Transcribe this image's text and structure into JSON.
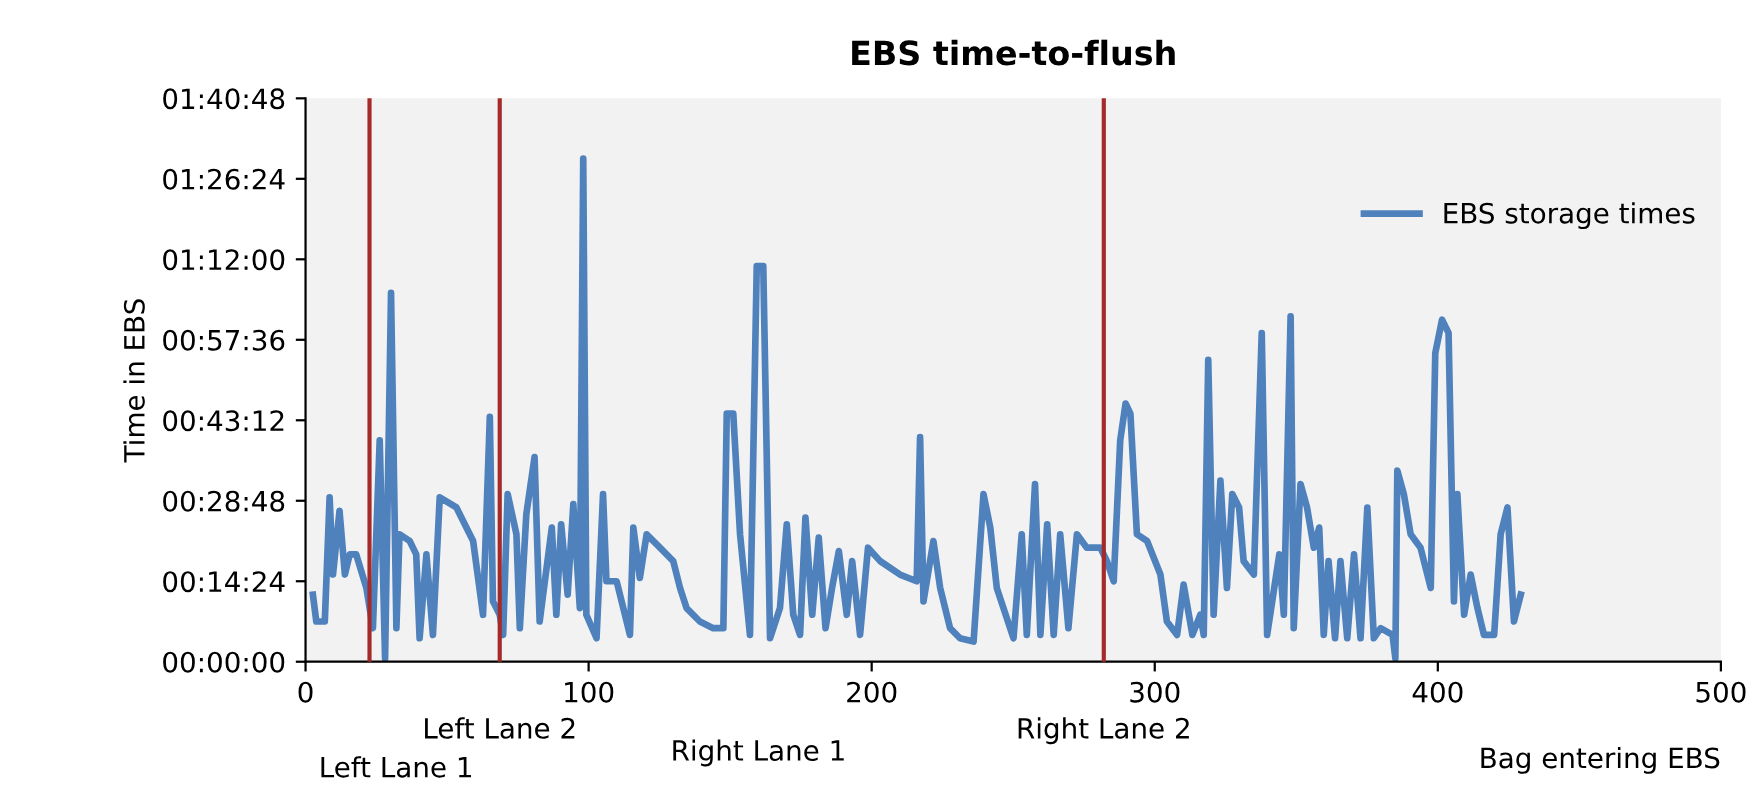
{
  "chart_data": {
    "type": "line",
    "title": "EBS time-to-flush",
    "xlabel": "Bag entering EBS",
    "ylabel": "Time in EBS",
    "xlim": [
      0,
      500
    ],
    "xticks": [
      0,
      100,
      200,
      300,
      400,
      500
    ],
    "ylim": [
      0,
      1.68
    ],
    "yticks": [
      {
        "value": 0,
        "label": "00:00:00"
      },
      {
        "value": 0.24,
        "label": "00:14:24"
      },
      {
        "value": 0.48,
        "label": "00:28:48"
      },
      {
        "value": 0.72,
        "label": "00:43:12"
      },
      {
        "value": 0.96,
        "label": "00:57:36"
      },
      {
        "value": 1.2,
        "label": "01:12:00"
      },
      {
        "value": 1.44,
        "label": "01:26:24"
      },
      {
        "value": 1.68,
        "label": "01:40:48"
      }
    ],
    "grid": false,
    "legend": "top right",
    "series": [
      {
        "name": "EBS storage times",
        "color": "#4f81bd",
        "x": [
          2.6,
          3.8,
          6.8,
          8.5,
          9.7,
          12.0,
          13.9,
          15.6,
          17.9,
          21.5,
          23.8,
          26.2,
          28.1,
          30.2,
          32.1,
          33.2,
          36.8,
          39.1,
          40.3,
          42.7,
          45.0,
          47.4,
          53.3,
          59.2,
          62.7,
          65.1,
          66.2,
          68.6,
          69.8,
          71.4,
          74.5,
          75.7,
          78.0,
          80.9,
          82.7,
          87.0,
          88.6,
          90.3,
          92.6,
          94.6,
          96.9,
          98.1,
          99.2,
          102.8,
          105.1,
          106.3,
          109.9,
          114.6,
          115.8,
          118.1,
          120.5,
          125.2,
          129.9,
          132.3,
          134.6,
          139.3,
          144.0,
          147.6,
          148.8,
          151.1,
          153.5,
          157.0,
          159.4,
          161.7,
          164.1,
          167.6,
          170.0,
          172.3,
          174.7,
          176.6,
          179.0,
          181.3,
          183.7,
          186.0,
          188.4,
          191.2,
          193.1,
          195.9,
          198.7,
          203.0,
          210.0,
          215.9,
          217.1,
          218.3,
          221.8,
          224.2,
          227.7,
          231.2,
          236.0,
          239.5,
          241.9,
          244.2,
          250.1,
          253.0,
          254.8,
          257.7,
          259.6,
          262.0,
          264.3,
          266.6,
          269.5,
          272.5,
          276.0,
          280.8,
          283.1,
          285.5,
          287.8,
          289.7,
          291.4,
          293.7,
          297.3,
          302.0,
          304.3,
          307.9,
          310.2,
          313.3,
          316.1,
          317.3,
          318.9,
          320.8,
          323.2,
          325.5,
          327.4,
          329.8,
          331.4,
          335.0,
          337.8,
          339.7,
          344.0,
          345.6,
          348.0,
          349.1,
          351.5,
          353.8,
          356.2,
          358.1,
          359.7,
          361.4,
          363.7,
          365.6,
          368.0,
          370.4,
          372.7,
          375.1,
          377.4,
          379.8,
          384.0,
          385.0,
          385.7,
          388.0,
          390.4,
          393.9,
          397.5,
          399.1,
          401.5,
          403.8,
          405.7,
          406.9,
          409.3,
          411.6,
          414.0,
          416.3,
          419.9,
          422.2,
          424.6,
          426.9,
          429.3
        ],
        "values": [
          0.2,
          0.12,
          0.12,
          0.49,
          0.26,
          0.45,
          0.26,
          0.32,
          0.32,
          0.22,
          0.1,
          0.66,
          0.01,
          1.1,
          0.1,
          0.38,
          0.36,
          0.32,
          0.07,
          0.32,
          0.08,
          0.49,
          0.46,
          0.36,
          0.14,
          0.73,
          0.18,
          0.14,
          0.08,
          0.5,
          0.38,
          0.1,
          0.44,
          0.61,
          0.12,
          0.4,
          0.14,
          0.41,
          0.2,
          0.47,
          0.16,
          1.5,
          0.14,
          0.07,
          0.5,
          0.24,
          0.24,
          0.08,
          0.4,
          0.25,
          0.38,
          0.34,
          0.3,
          0.22,
          0.16,
          0.12,
          0.1,
          0.1,
          0.74,
          0.74,
          0.38,
          0.08,
          1.18,
          1.18,
          0.07,
          0.16,
          0.41,
          0.14,
          0.08,
          0.43,
          0.14,
          0.37,
          0.1,
          0.22,
          0.33,
          0.14,
          0.3,
          0.08,
          0.34,
          0.3,
          0.26,
          0.24,
          0.67,
          0.18,
          0.36,
          0.22,
          0.1,
          0.07,
          0.06,
          0.5,
          0.4,
          0.22,
          0.07,
          0.38,
          0.08,
          0.53,
          0.08,
          0.41,
          0.08,
          0.38,
          0.1,
          0.38,
          0.34,
          0.34,
          0.3,
          0.24,
          0.66,
          0.77,
          0.74,
          0.38,
          0.36,
          0.26,
          0.12,
          0.08,
          0.23,
          0.08,
          0.14,
          0.08,
          0.9,
          0.14,
          0.54,
          0.22,
          0.5,
          0.46,
          0.3,
          0.26,
          0.98,
          0.08,
          0.32,
          0.14,
          1.03,
          0.1,
          0.53,
          0.46,
          0.34,
          0.4,
          0.08,
          0.3,
          0.07,
          0.3,
          0.07,
          0.32,
          0.07,
          0.46,
          0.07,
          0.1,
          0.08,
          0.01,
          0.57,
          0.5,
          0.38,
          0.34,
          0.22,
          0.92,
          1.02,
          0.98,
          0.18,
          0.5,
          0.14,
          0.26,
          0.16,
          0.08,
          0.08,
          0.38,
          0.46,
          0.12,
          0.2
        ]
      }
    ],
    "ref_lines": [
      {
        "axis": "x",
        "value": 22.6,
        "color": "#a52a2a"
      },
      {
        "axis": "x",
        "value": 68.6,
        "color": "#a52a2a",
        "label": "Left Lane 2"
      },
      {
        "axis": "x",
        "value": 282,
        "color": "#a52a2a",
        "label": "Right Lane 2"
      }
    ],
    "annotations": [
      "Left Lane 1",
      "Right Lane 1"
    ]
  }
}
